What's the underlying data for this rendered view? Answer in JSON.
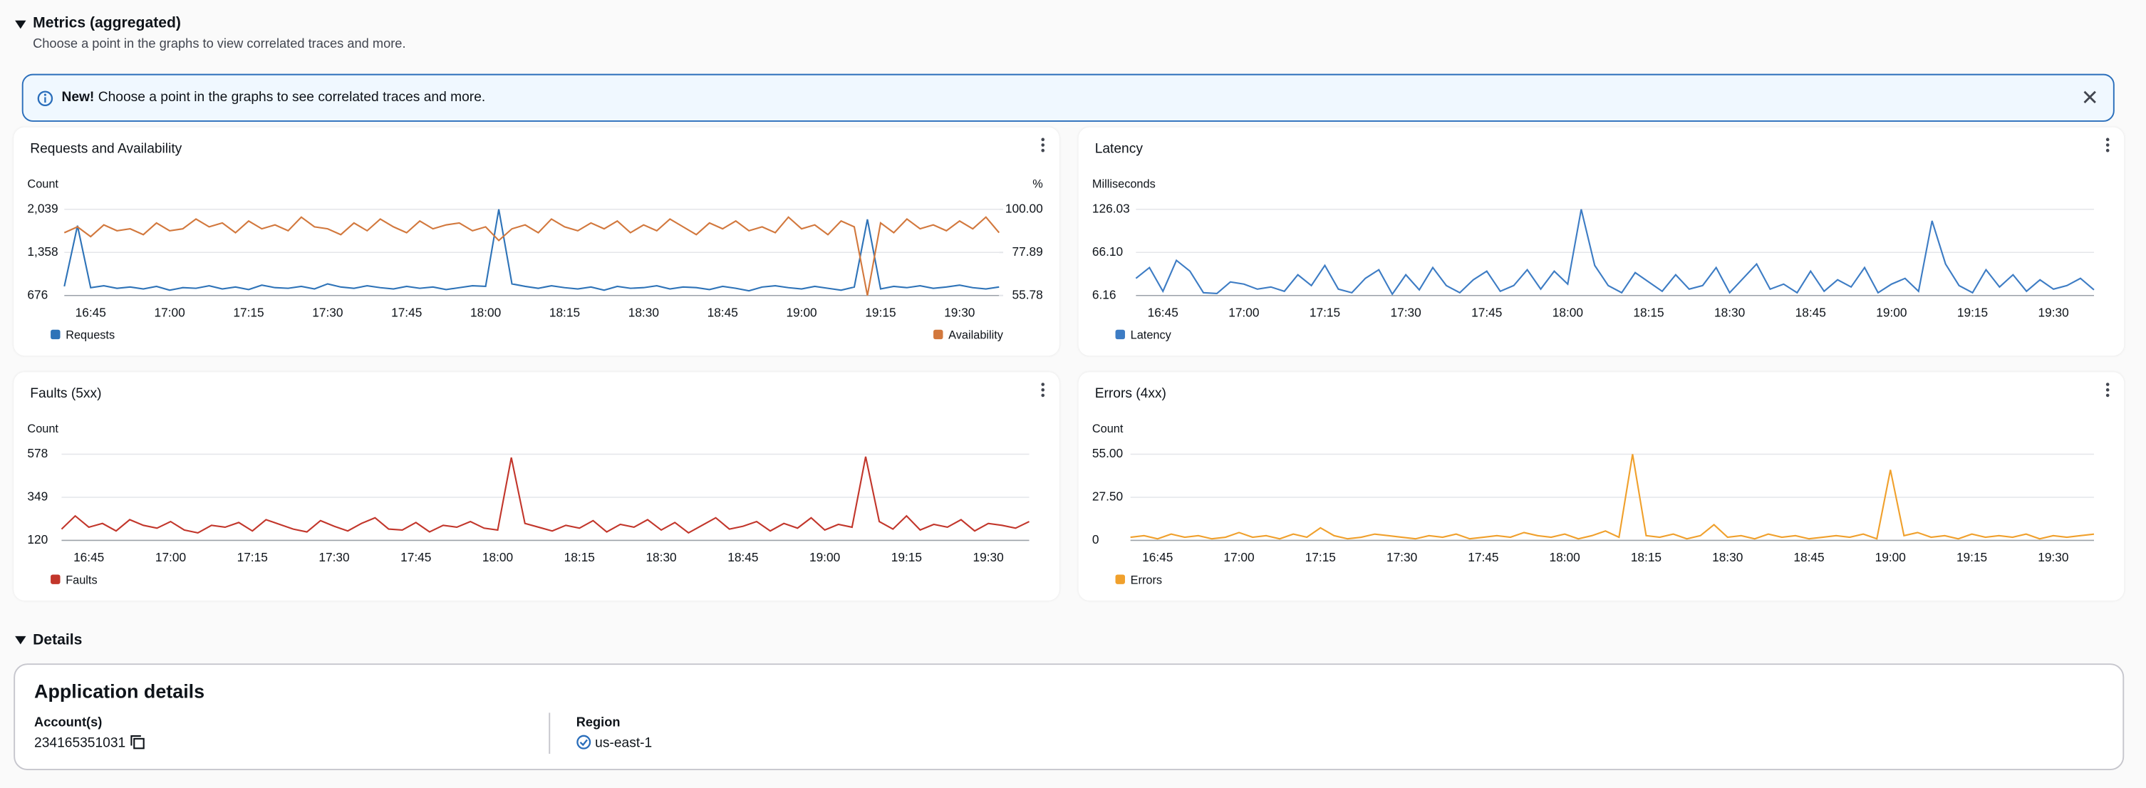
{
  "header": {
    "title": "Metrics (aggregated)",
    "subtitle": "Choose a point in the graphs to view correlated traces and more."
  },
  "banner": {
    "bold": "New!",
    "text": "Choose a point in the graphs to see correlated traces and more."
  },
  "chart_data": [
    {
      "type": "line",
      "title": "Requests and Availability",
      "y_label": "Count",
      "y2_label": "%",
      "categories": [
        null,
        null,
        "16:45",
        null,
        null,
        null,
        null,
        null,
        "17:00",
        null,
        null,
        null,
        null,
        null,
        "17:15",
        null,
        null,
        null,
        null,
        null,
        "17:30",
        null,
        null,
        null,
        null,
        null,
        "17:45",
        null,
        null,
        null,
        null,
        null,
        "18:00",
        null,
        null,
        null,
        null,
        null,
        "18:15",
        null,
        null,
        null,
        null,
        null,
        "18:30",
        null,
        null,
        null,
        null,
        null,
        "18:45",
        null,
        null,
        null,
        null,
        null,
        "19:00",
        null,
        null,
        null,
        null,
        null,
        "19:15",
        null,
        null,
        null,
        null,
        null,
        "19:30",
        null,
        null,
        null
      ],
      "series": [
        {
          "name": "Requests",
          "color": "#2e73b8",
          "values": [
            820,
            1780,
            800,
            830,
            790,
            810,
            780,
            820,
            760,
            800,
            790,
            830,
            780,
            810,
            770,
            840,
            800,
            790,
            820,
            780,
            860,
            810,
            790,
            830,
            800,
            780,
            820,
            790,
            810,
            770,
            800,
            830,
            820,
            2039,
            860,
            820,
            790,
            830,
            800,
            780,
            810,
            760,
            820,
            790,
            800,
            830,
            780,
            810,
            800,
            770,
            820,
            790,
            750,
            810,
            830,
            800,
            780,
            820,
            790,
            760,
            810,
            1880,
            780,
            820,
            800,
            830,
            790,
            810,
            840,
            800,
            780,
            810
          ]
        },
        {
          "name": "Availability",
          "color": "#d2783d",
          "axis": "y2",
          "values": [
            88,
            91,
            86,
            92,
            89,
            90,
            87,
            93,
            89,
            90,
            95,
            91,
            93,
            88,
            94,
            90,
            92,
            89,
            96,
            91,
            90,
            87,
            93,
            89,
            95,
            91,
            88,
            94,
            90,
            92,
            93,
            89,
            91,
            84,
            90,
            92,
            88,
            95,
            91,
            89,
            93,
            90,
            94,
            88,
            92,
            89,
            95,
            91,
            87,
            93,
            90,
            94,
            89,
            91,
            88,
            96,
            90,
            92,
            87,
            94,
            91,
            55.78,
            93,
            88,
            95,
            90,
            92,
            89,
            94,
            90,
            96,
            88
          ]
        }
      ],
      "ylim": [
        676,
        2039
      ],
      "yticks": [
        676,
        {
          "value": 1358,
          "label": "1,358"
        },
        {
          "value": 2039,
          "label": "2,039"
        }
      ],
      "y2lim": [
        55.78,
        100
      ],
      "y2ticks": [
        55.78,
        77.89,
        {
          "value": 100,
          "label": "100.00"
        }
      ],
      "grid": true
    },
    {
      "type": "line",
      "title": "Latency",
      "y_label": "Milliseconds",
      "categories": [
        null,
        null,
        "16:45",
        null,
        null,
        null,
        null,
        null,
        "17:00",
        null,
        null,
        null,
        null,
        null,
        "17:15",
        null,
        null,
        null,
        null,
        null,
        "17:30",
        null,
        null,
        null,
        null,
        null,
        "17:45",
        null,
        null,
        null,
        null,
        null,
        "18:00",
        null,
        null,
        null,
        null,
        null,
        "18:15",
        null,
        null,
        null,
        null,
        null,
        "18:30",
        null,
        null,
        null,
        null,
        null,
        "18:45",
        null,
        null,
        null,
        null,
        null,
        "19:00",
        null,
        null,
        null,
        null,
        null,
        "19:15",
        null,
        null,
        null,
        null,
        null,
        "19:30",
        null,
        null,
        null
      ],
      "series": [
        {
          "name": "Latency",
          "color": "#3d7cc4",
          "values": [
            30,
            45,
            12,
            55,
            40,
            10,
            9,
            25,
            22,
            15,
            18,
            12,
            35,
            20,
            48,
            15,
            10,
            30,
            42,
            8,
            35,
            14,
            45,
            20,
            10,
            28,
            40,
            12,
            20,
            42,
            15,
            40,
            22,
            126.03,
            48,
            20,
            10,
            38,
            25,
            12,
            35,
            15,
            20,
            45,
            10,
            30,
            50,
            15,
            22,
            10,
            40,
            12,
            28,
            18,
            45,
            10,
            22,
            30,
            12,
            110,
            50,
            20,
            10,
            42,
            18,
            35,
            12,
            28,
            15,
            20,
            30,
            14
          ]
        }
      ],
      "ylim": [
        6.16,
        126.03
      ],
      "yticks": [
        6.16,
        {
          "value": 66.1,
          "label": "66.10"
        },
        126.03
      ],
      "grid": true
    },
    {
      "type": "line",
      "title": "Faults (5xx)",
      "y_label": "Count",
      "categories": [
        null,
        null,
        "16:45",
        null,
        null,
        null,
        null,
        null,
        "17:00",
        null,
        null,
        null,
        null,
        null,
        "17:15",
        null,
        null,
        null,
        null,
        null,
        "17:30",
        null,
        null,
        null,
        null,
        null,
        "17:45",
        null,
        null,
        null,
        null,
        null,
        "18:00",
        null,
        null,
        null,
        null,
        null,
        "18:15",
        null,
        null,
        null,
        null,
        null,
        "18:30",
        null,
        null,
        null,
        null,
        null,
        "18:45",
        null,
        null,
        null,
        null,
        null,
        "19:00",
        null,
        null,
        null,
        null,
        null,
        "19:15",
        null,
        null,
        null,
        null,
        null,
        "19:30",
        null,
        null,
        null
      ],
      "series": [
        {
          "name": "Faults",
          "color": "#c2362b",
          "values": [
            180,
            250,
            190,
            210,
            170,
            230,
            200,
            185,
            220,
            175,
            160,
            200,
            190,
            215,
            170,
            230,
            205,
            180,
            165,
            225,
            195,
            170,
            210,
            240,
            180,
            175,
            215,
            165,
            200,
            190,
            220,
            185,
            175,
            560,
            210,
            190,
            170,
            200,
            185,
            225,
            165,
            205,
            190,
            230,
            175,
            215,
            160,
            200,
            240,
            180,
            195,
            220,
            170,
            210,
            185,
            240,
            175,
            205,
            190,
            565,
            220,
            180,
            250,
            175,
            205,
            190,
            230,
            170,
            210,
            200,
            185,
            220
          ]
        }
      ],
      "ylim": [
        120,
        578
      ],
      "yticks": [
        120,
        349,
        578
      ],
      "grid": true
    },
    {
      "type": "line",
      "title": "Errors (4xx)",
      "y_label": "Count",
      "categories": [
        null,
        null,
        "16:45",
        null,
        null,
        null,
        null,
        null,
        "17:00",
        null,
        null,
        null,
        null,
        null,
        "17:15",
        null,
        null,
        null,
        null,
        null,
        "17:30",
        null,
        null,
        null,
        null,
        null,
        "17:45",
        null,
        null,
        null,
        null,
        null,
        "18:00",
        null,
        null,
        null,
        null,
        null,
        "18:15",
        null,
        null,
        null,
        null,
        null,
        "18:30",
        null,
        null,
        null,
        null,
        null,
        "18:45",
        null,
        null,
        null,
        null,
        null,
        "19:00",
        null,
        null,
        null,
        null,
        null,
        "19:15",
        null,
        null,
        null,
        null,
        null,
        "19:30",
        null,
        null,
        null
      ],
      "series": [
        {
          "name": "Errors",
          "color": "#f0a02c",
          "values": [
            2,
            3,
            1,
            4,
            2,
            3,
            1,
            2,
            5,
            2,
            3,
            1,
            4,
            2,
            8,
            3,
            1,
            2,
            4,
            3,
            2,
            1,
            3,
            2,
            4,
            1,
            2,
            3,
            2,
            5,
            3,
            2,
            4,
            1,
            3,
            6,
            2,
            55,
            3,
            2,
            4,
            1,
            3,
            10,
            2,
            3,
            1,
            4,
            2,
            3,
            1,
            2,
            3,
            2,
            4,
            1,
            45,
            3,
            5,
            2,
            3,
            1,
            4,
            2,
            3,
            2,
            4,
            1,
            3,
            2,
            3,
            4
          ]
        }
      ],
      "ylim": [
        0,
        55
      ],
      "yticks": [
        0,
        {
          "value": 27.5,
          "label": "27.50"
        },
        {
          "value": 55,
          "label": "55.00"
        }
      ],
      "grid": true
    }
  ],
  "details": {
    "title": "Details",
    "card_title": "Application details",
    "account_label": "Account(s)",
    "account": "234165351031",
    "region_label": "Region",
    "region": "us-east-1"
  }
}
